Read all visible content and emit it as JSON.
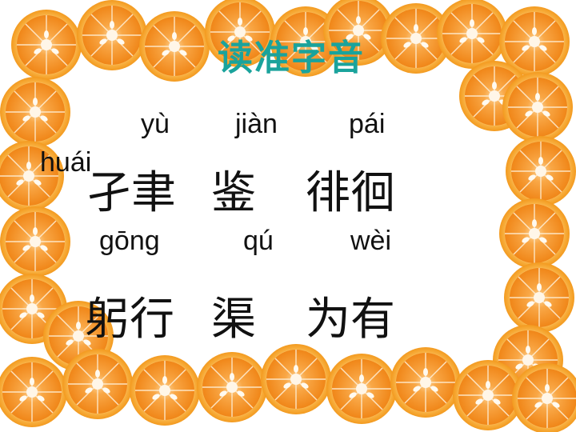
{
  "slide": {
    "title": "读准字音",
    "row1": {
      "pinyin": [
        "yù",
        "jiàn",
        "pái",
        "huái"
      ],
      "words": [
        "孑聿",
        "鉴",
        "徘徊"
      ]
    },
    "row2": {
      "pinyin": [
        "gōng",
        "qú",
        "wèi"
      ],
      "words": [
        "躬行",
        "渠",
        "为有"
      ]
    }
  },
  "colors": {
    "title": "#1aa39c",
    "orange_peel": "#f7a12a",
    "orange_flesh": "#f2891d",
    "pith": "#fff7e6"
  },
  "icons": {
    "border": "orange-slice-icon"
  }
}
